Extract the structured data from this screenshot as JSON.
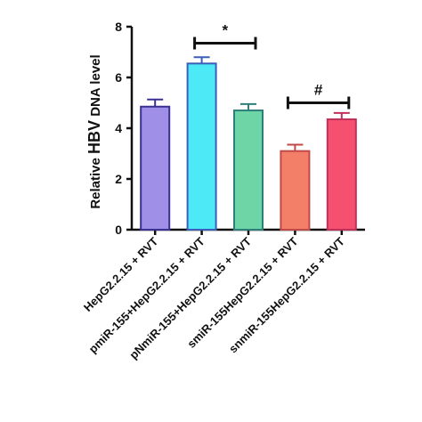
{
  "chart_data": {
    "type": "bar",
    "categories": [
      "HepG2.2.15 + RVT",
      "pmiR-155+HepG2.2.15 + RVT",
      "pNmiR-155+HepG2.2.15 + RVT",
      "smiR-155HepG2.2.15 + RVT",
      "snmiR-155HepG2.2.15 + RVT"
    ],
    "values": [
      4.85,
      6.55,
      4.7,
      3.1,
      4.35
    ],
    "errors": [
      0.28,
      0.25,
      0.25,
      0.25,
      0.25
    ],
    "bar_colors": [
      "#a08fe6",
      "#4de9f7",
      "#6ed6a6",
      "#f47f69",
      "#f5506f"
    ],
    "bar_edge_colors": [
      "#3a3193",
      "#3b5fb8",
      "#2e7f79",
      "#c04a4a",
      "#c0305a"
    ],
    "ylabel": {
      "prefix": "Relative ",
      "emphasis": "HBV",
      "suffix": " DNA  level"
    },
    "ylim": [
      0,
      8
    ],
    "yticks": [
      0,
      2,
      4,
      6,
      8
    ],
    "grid": false,
    "significance": [
      {
        "from": 1,
        "to": 2,
        "label": "*",
        "y": 7.35
      },
      {
        "from": 3,
        "to": 4,
        "label": "#",
        "y": 5.0
      }
    ]
  }
}
